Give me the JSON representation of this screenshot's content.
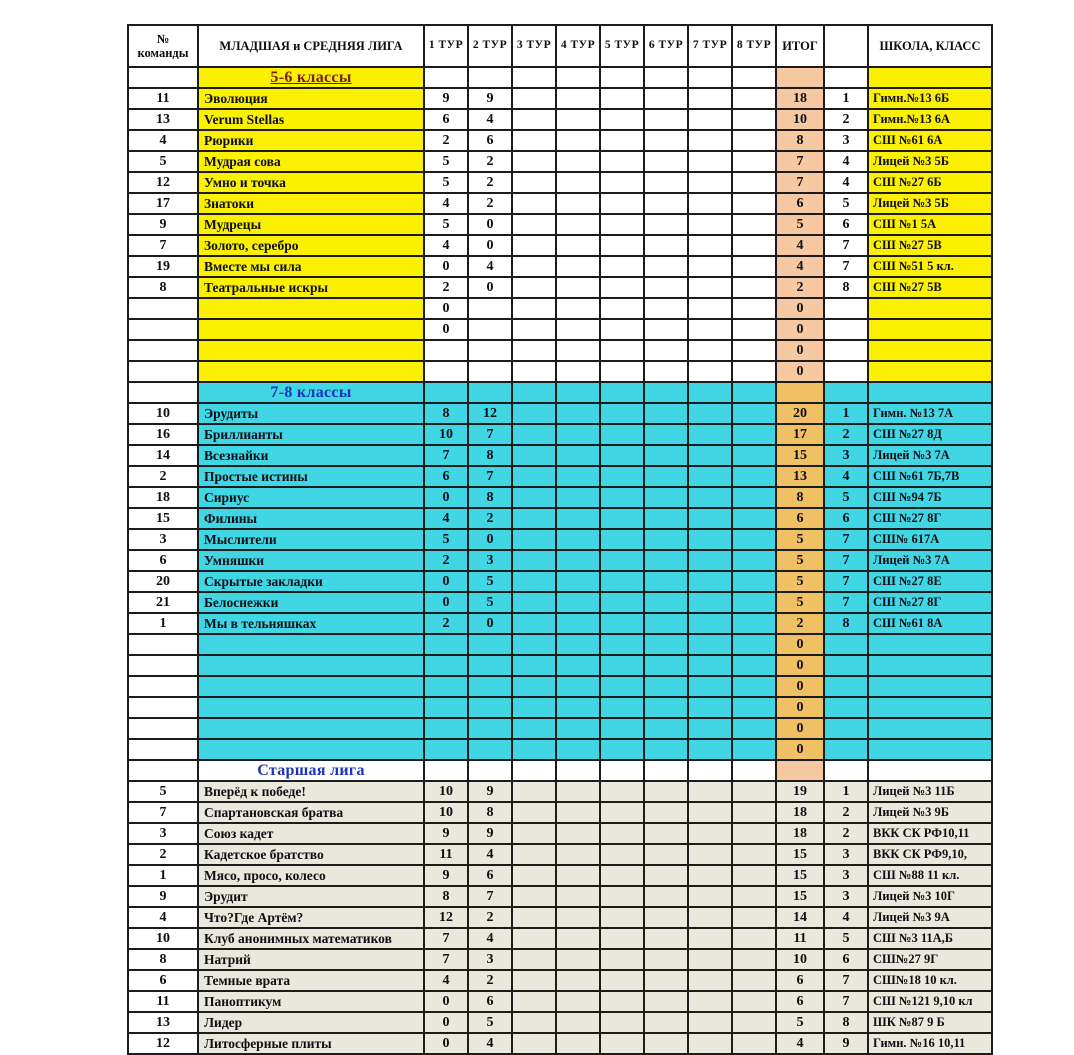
{
  "header": {
    "col_num": "№ команды",
    "col_league": "МЛАДШАЯ и СРЕДНЯЯ ЛИГА",
    "tours": [
      "1 ТУР",
      "2 ТУР",
      "3 ТУР",
      "4 ТУР",
      "5 ТУР",
      "6 ТУР",
      "7 ТУР",
      "8 ТУР"
    ],
    "col_total": "ИТОГ",
    "col_place": "",
    "col_school": "ШКОЛА, КЛАСС"
  },
  "colors": {
    "yellow": "#faf000",
    "cyan": "#41d6e3",
    "peach": "#f6c9a2",
    "gold": "#f0c164",
    "senior_gray": "#eae8dc",
    "white": "#ffffff",
    "title_red": "#7a1d05",
    "title_blue": "#1c35b8",
    "grid": "#1c1c1c"
  },
  "sections": [
    {
      "title": "5-6 классы",
      "title_color": "#7a1d05",
      "underline": true,
      "head": {
        "name": "#faf000",
        "tour": "#ffffff",
        "total": "#f6c9a2",
        "place": "#ffffff",
        "school": "#faf000"
      },
      "row": {
        "name": "#faf000",
        "tour": "#ffffff",
        "total": "#f6c9a2",
        "place": "#ffffff",
        "school": "#faf000"
      },
      "rows": [
        [
          "11",
          "Эволюция",
          "9",
          "9",
          "18",
          "1",
          "Гимн.№13 6Б"
        ],
        [
          "13",
          "Verum Stellas",
          "6",
          "4",
          "10",
          "2",
          "Гимн.№13 6А"
        ],
        [
          "4",
          "Рюрики",
          "2",
          "6",
          "8",
          "3",
          "СШ №61 6А"
        ],
        [
          "5",
          "Мудрая сова",
          "5",
          "2",
          "7",
          "4",
          "Лицей №3 5Б"
        ],
        [
          "12",
          "Умно и точка",
          "5",
          "2",
          "7",
          "4",
          "СШ №27 6Б"
        ],
        [
          "17",
          "Знатоки",
          "4",
          "2",
          "6",
          "5",
          "Лицей №3 5Б"
        ],
        [
          "9",
          "Мудрецы",
          "5",
          "0",
          "5",
          "6",
          "СШ №1 5А"
        ],
        [
          "7",
          "Золото, серебро",
          "4",
          "0",
          "4",
          "7",
          "СШ №27 5В"
        ],
        [
          "19",
          "Вместе мы сила",
          "0",
          "4",
          "4",
          "7",
          "СШ №51 5 кл."
        ],
        [
          "8",
          "Театральные искры",
          "2",
          "0",
          "2",
          "8",
          "СШ №27 5В"
        ],
        [
          "",
          "",
          "0",
          "",
          "0",
          "",
          ""
        ],
        [
          "",
          "",
          "0",
          "",
          "0",
          "",
          ""
        ],
        [
          "",
          "",
          "",
          "",
          "0",
          "",
          ""
        ],
        [
          "",
          "",
          "",
          "",
          "0",
          "",
          ""
        ]
      ]
    },
    {
      "title": "7-8 классы",
      "title_color": "#1c35b8",
      "underline": false,
      "head": {
        "name": "#41d6e3",
        "tour": "#41d6e3",
        "total": "#f0c164",
        "place": "#41d6e3",
        "school": "#41d6e3"
      },
      "row": {
        "name": "#41d6e3",
        "tour": "#41d6e3",
        "total": "#f0c164",
        "place": "#41d6e3",
        "school": "#41d6e3"
      },
      "rows": [
        [
          "10",
          "Эрудиты",
          "8",
          "12",
          "20",
          "1",
          "Гимн. №13 7А"
        ],
        [
          "16",
          "Бриллианты",
          "10",
          "7",
          "17",
          "2",
          "СШ №27 8Д"
        ],
        [
          "14",
          "Всезнайки",
          "7",
          "8",
          "15",
          "3",
          "Лицей №3 7А"
        ],
        [
          "2",
          "Простые истины",
          "6",
          "7",
          "13",
          "4",
          "СШ №61 7Б,7В"
        ],
        [
          "18",
          "Сириус",
          "0",
          "8",
          "8",
          "5",
          "СШ №94 7Б"
        ],
        [
          "15",
          "Филины",
          "4",
          "2",
          "6",
          "6",
          "СШ №27 8Г"
        ],
        [
          "3",
          "Мыслители",
          "5",
          "0",
          "5",
          "7",
          "СШ№ 617А"
        ],
        [
          "6",
          "Умняшки",
          "2",
          "3",
          "5",
          "7",
          "Лицей №3 7А"
        ],
        [
          "20",
          "Скрытые закладки",
          "0",
          "5",
          "5",
          "7",
          "СШ №27 8Е"
        ],
        [
          "21",
          "Белоснежки",
          "0",
          "5",
          "5",
          "7",
          "СШ №27 8Г"
        ],
        [
          "1",
          "Мы в тельняшках",
          "2",
          "0",
          "2",
          "8",
          "СШ №61 8А"
        ],
        [
          "",
          "",
          "",
          "",
          "0",
          "",
          ""
        ],
        [
          "",
          "",
          "",
          "",
          "0",
          "",
          ""
        ],
        [
          "",
          "",
          "",
          "",
          "0",
          "",
          ""
        ],
        [
          "",
          "",
          "",
          "",
          "0",
          "",
          ""
        ],
        [
          "",
          "",
          "",
          "",
          "0",
          "",
          ""
        ],
        [
          "",
          "",
          "",
          "",
          "0",
          "",
          ""
        ]
      ]
    },
    {
      "title": "Старшая лига",
      "title_color": "#1c35b8",
      "underline": false,
      "head": {
        "name": "#ffffff",
        "tour": "#ffffff",
        "total": "#f6c9a2",
        "place": "#ffffff",
        "school": "#ffffff"
      },
      "row": {
        "name": "#eae8dc",
        "tour": "#eae8dc",
        "total": "#eae8dc",
        "place": "#eae8dc",
        "school": "#eae8dc"
      },
      "rows": [
        [
          "5",
          "Вперёд к победе!",
          "10",
          "9",
          "19",
          "1",
          "Лицей №3 11Б"
        ],
        [
          "7",
          "Спартановская братва",
          "10",
          "8",
          "18",
          "2",
          "Лицей №3 9Б"
        ],
        [
          "3",
          "Союз кадет",
          "9",
          "9",
          "18",
          "2",
          "ВКК СК РФ10,11"
        ],
        [
          "2",
          "Кадетское братство",
          "11",
          "4",
          "15",
          "3",
          "ВКК СК РФ9,10,"
        ],
        [
          "1",
          "Мясо, просо, колесо",
          "9",
          "6",
          "15",
          "3",
          "СШ №88 11 кл."
        ],
        [
          "9",
          "Эрудит",
          "8",
          "7",
          "15",
          "3",
          "Лицей №3 10Г"
        ],
        [
          "4",
          "Что?Где Артём?",
          "12",
          "2",
          "14",
          "4",
          "Лицей №3 9А"
        ],
        [
          "10",
          "Клуб анонимных математиков",
          "7",
          "4",
          "11",
          "5",
          "СШ №3 11А,Б"
        ],
        [
          "8",
          "Натрий",
          "7",
          "3",
          "10",
          "6",
          "СШ№27 9Г"
        ],
        [
          "6",
          "Темные врата",
          "4",
          "2",
          "6",
          "7",
          "СШ№18 10 кл."
        ],
        [
          "11",
          "Паноптикум",
          "0",
          "6",
          "6",
          "7",
          "СШ №121 9,10 кл"
        ],
        [
          "13",
          "Лидер",
          "0",
          "5",
          "5",
          "8",
          "ШК №87 9 Б"
        ],
        [
          "12",
          "Литосферные плиты",
          "0",
          "4",
          "4",
          "9",
          "Гимн. №16 10,11"
        ]
      ]
    }
  ]
}
